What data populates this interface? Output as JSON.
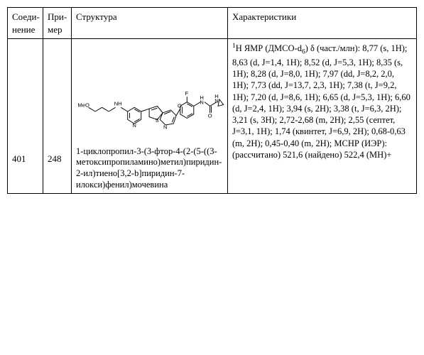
{
  "headers": {
    "compound": "Соеди-\nнение",
    "example": "При-\nмер",
    "structure": "Структура",
    "characteristics": "Характеристики"
  },
  "row": {
    "compound_id": "401",
    "example_id": "248",
    "structure_name": "1-циклопропил-3-(3-фтор-4-(2-(5-((3-метоксипропиламино)метил)пиридин-2-ил)тиено[3,2-b]пиридин-7-илокси)фенил)мочевина",
    "structure_labels": {
      "meo": "MeO",
      "nh": "NH",
      "n1": "N",
      "s": "S",
      "n2": "N",
      "o1": "O",
      "f": "F",
      "nh2": "H\nN",
      "o2": "O",
      "nh3": "H\nN"
    },
    "characteristics_lead_sup": "1",
    "characteristics_lead": "Н ЯМР (ДМСО-d",
    "characteristics_lead_sub": "6",
    "characteristics_lead_tail": ")",
    "characteristics_body": "δ (част./млн): 8,77 (s, 1H); 8,63 (d, J=1,4, 1H); 8,52 (d, J=5,3, 1H); 8,35 (s, 1H); 8,28 (d, J=8,0, 1H); 7,97 (dd, J=8,2, 2,0, 1H); 7,73 (dd, J=13,7, 2,3, 1H); 7,38 (t, J=9,2, 1H); 7,20 (d, J=8,6, 1H); 6,65 (d, J=5,3, 1H); 6,60 (d, J=2,4, 1H); 3,94 (s, 2H); 3,38 (t, J=6,3, 2H); 3,21 (s, 3H); 2,72-2,68 (m, 2H); 2,55 (септет, J=3,1, 1H); 1,74 (квинтет, J=6,9, 2H); 0,68-0,63 (m, 2H); 0,45-0,40 (m, 2H); МСНР (ИЭР): (рассчитано) 521,6 (найдено) 522,4 (МН)+"
  },
  "style": {
    "line_color": "#000000",
    "line_width": 1,
    "font_atom_size": 9,
    "bg": "#ffffff"
  }
}
